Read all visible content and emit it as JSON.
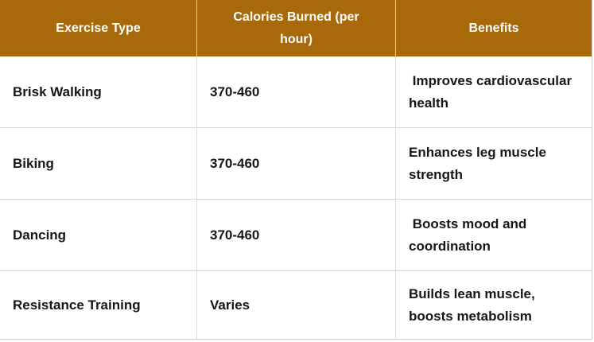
{
  "table": {
    "headers": [
      "Exercise Type",
      "Calories Burned (per hour)",
      "Benefits"
    ],
    "rows": [
      {
        "exercise": "Brisk Walking",
        "calories": "370-460",
        "benefits": " Improves cardiovascular health"
      },
      {
        "exercise": "Biking",
        "calories": "370-460",
        "benefits": "Enhances leg muscle strength"
      },
      {
        "exercise": "Dancing",
        "calories": "370-460",
        "benefits": " Boosts mood and coordination"
      },
      {
        "exercise": "Resistance Training",
        "calories": "Varies",
        "benefits": "Builds lean muscle, boosts metabolism"
      }
    ],
    "colors": {
      "header_bg": "#a8690b",
      "header_text": "#ffffff",
      "body_text": "#161616",
      "border_outer": "#c8d0d8",
      "border_inner": "#d8dce0",
      "row_bg": "#ffffff"
    }
  },
  "chart_data": {
    "type": "table",
    "columns": [
      "Exercise Type",
      "Calories Burned (per hour)",
      "Benefits"
    ],
    "rows": [
      [
        "Brisk Walking",
        "370-460",
        "Improves cardiovascular health"
      ],
      [
        "Biking",
        "370-460",
        "Enhances leg muscle strength"
      ],
      [
        "Dancing",
        "370-460",
        "Boosts mood and coordination"
      ],
      [
        "Resistance Training",
        "Varies",
        "Builds lean muscle, boosts metabolism"
      ]
    ],
    "title": "",
    "layout_hints": {
      "header_fill": "#a8690b",
      "grid": "on",
      "columns_equal_width": true
    }
  }
}
